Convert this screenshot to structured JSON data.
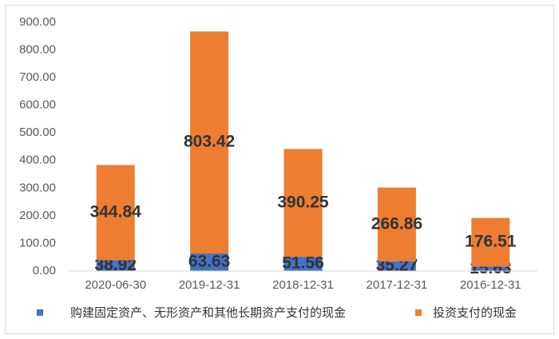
{
  "chart_data": {
    "type": "bar",
    "stacked": true,
    "categories": [
      "2020-06-30",
      "2019-12-31",
      "2018-12-31",
      "2017-12-31",
      "2016-12-31"
    ],
    "series": [
      {
        "name": "购建固定资产、无形资产和其他长期资产支付的现金",
        "color": "#4472c4",
        "values": [
          38.92,
          63.63,
          51.56,
          35.27,
          15.63
        ]
      },
      {
        "name": "投资支付的现金",
        "color": "#ed7d31",
        "values": [
          344.84,
          803.42,
          390.25,
          266.86,
          176.51
        ]
      }
    ],
    "ylim": [
      0,
      900
    ],
    "yticks": [
      {
        "value": 0,
        "label": "0.00"
      },
      {
        "value": 100,
        "label": "100.00"
      },
      {
        "value": 200,
        "label": "200.00"
      },
      {
        "value": 300,
        "label": "300.00"
      },
      {
        "value": 400,
        "label": "400.00"
      },
      {
        "value": 500,
        "label": "500.00"
      },
      {
        "value": 600,
        "label": "600.00"
      },
      {
        "value": 700,
        "label": "700.00"
      },
      {
        "value": 800,
        "label": "800.00"
      },
      {
        "value": 900,
        "label": "900.00"
      }
    ],
    "grid": false,
    "legend": "bottom"
  }
}
